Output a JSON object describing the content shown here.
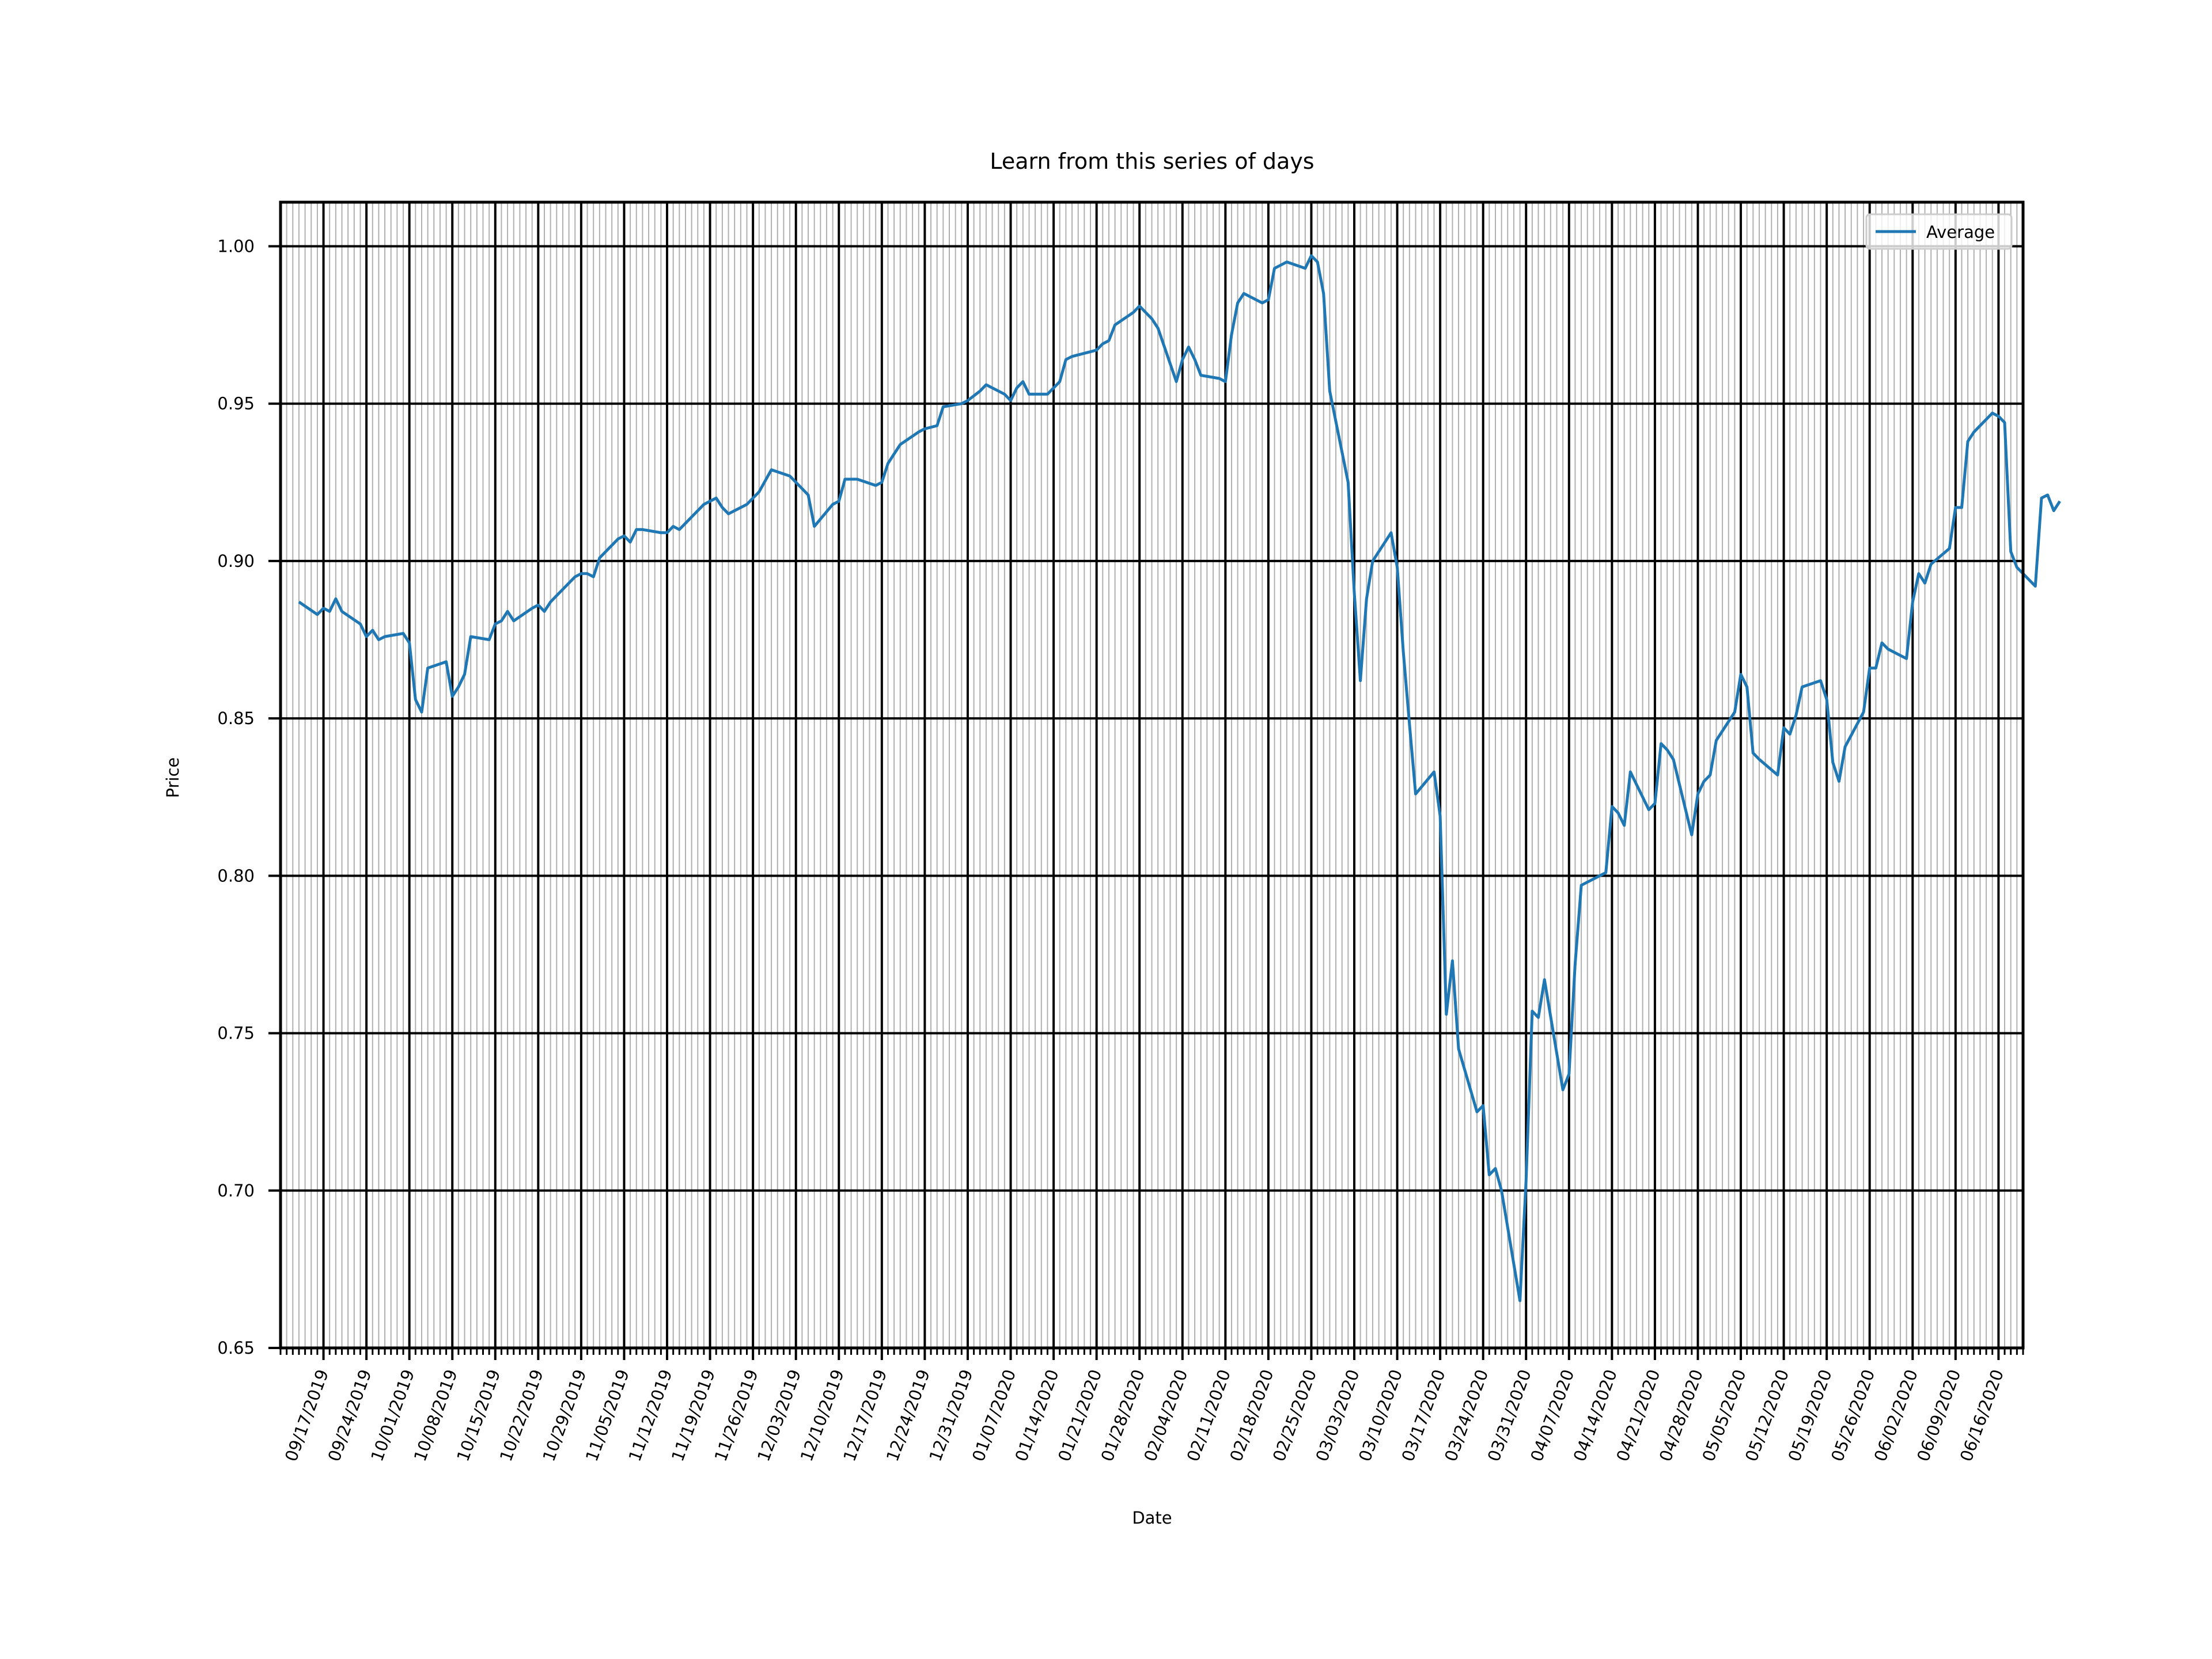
{
  "chart_data": {
    "type": "line",
    "title": "Learn from this series of days",
    "xlabel": "Date",
    "ylabel": "Price",
    "ylim": [
      0.65,
      1.014
    ],
    "xlim": [
      "2019-09-10",
      "2020-06-20"
    ],
    "yticks": [
      0.65,
      0.7,
      0.75,
      0.8,
      0.85,
      0.9,
      0.95,
      1.0
    ],
    "ytick_labels": [
      "0.65",
      "0.70",
      "0.75",
      "0.80",
      "0.85",
      "0.90",
      "0.95",
      "1.00"
    ],
    "xticks": [
      "2019-09-17",
      "2019-09-24",
      "2019-10-01",
      "2019-10-08",
      "2019-10-15",
      "2019-10-22",
      "2019-10-29",
      "2019-11-05",
      "2019-11-12",
      "2019-11-19",
      "2019-11-26",
      "2019-12-03",
      "2019-12-10",
      "2019-12-17",
      "2019-12-24",
      "2019-12-31",
      "2020-01-07",
      "2020-01-14",
      "2020-01-21",
      "2020-01-28",
      "2020-02-04",
      "2020-02-11",
      "2020-02-18",
      "2020-02-25",
      "2020-03-03",
      "2020-03-10",
      "2020-03-17",
      "2020-03-24",
      "2020-03-31",
      "2020-04-07",
      "2020-04-14",
      "2020-04-21",
      "2020-04-28",
      "2020-05-05",
      "2020-05-12",
      "2020-05-19",
      "2020-05-26",
      "2020-06-02",
      "2020-06-09",
      "2020-06-16"
    ],
    "xtick_labels": [
      "09/17/2019",
      "09/24/2019",
      "10/01/2019",
      "10/08/2019",
      "10/15/2019",
      "10/22/2019",
      "10/29/2019",
      "11/05/2019",
      "11/12/2019",
      "11/19/2019",
      "11/26/2019",
      "12/03/2019",
      "12/10/2019",
      "12/17/2019",
      "12/24/2019",
      "12/31/2019",
      "01/07/2020",
      "01/14/2020",
      "01/21/2020",
      "01/28/2020",
      "02/04/2020",
      "02/11/2020",
      "02/18/2020",
      "02/25/2020",
      "03/03/2020",
      "03/10/2020",
      "03/17/2020",
      "03/24/2020",
      "03/31/2020",
      "04/07/2020",
      "04/14/2020",
      "04/21/2020",
      "04/28/2020",
      "05/05/2020",
      "05/12/2020",
      "05/19/2020",
      "05/26/2020",
      "06/02/2020",
      "06/09/2020",
      "06/16/2020"
    ],
    "grid": {
      "major": true,
      "minor": true
    },
    "legend": {
      "position": "upper right",
      "entries": [
        "Average"
      ]
    },
    "series": [
      {
        "name": "Average",
        "color": "#1f77b4",
        "points": [
          [
            "2019-09-13",
            0.887
          ],
          [
            "2019-09-16",
            0.883
          ],
          [
            "2019-09-17",
            0.885
          ],
          [
            "2019-09-18",
            0.884
          ],
          [
            "2019-09-19",
            0.888
          ],
          [
            "2019-09-20",
            0.884
          ],
          [
            "2019-09-23",
            0.88
          ],
          [
            "2019-09-24",
            0.876
          ],
          [
            "2019-09-25",
            0.878
          ],
          [
            "2019-09-26",
            0.875
          ],
          [
            "2019-09-27",
            0.876
          ],
          [
            "2019-09-30",
            0.877
          ],
          [
            "2019-10-01",
            0.874
          ],
          [
            "2019-10-02",
            0.856
          ],
          [
            "2019-10-03",
            0.852
          ],
          [
            "2019-10-04",
            0.866
          ],
          [
            "2019-10-07",
            0.868
          ],
          [
            "2019-10-08",
            0.857
          ],
          [
            "2019-10-09",
            0.86
          ],
          [
            "2019-10-10",
            0.864
          ],
          [
            "2019-10-11",
            0.876
          ],
          [
            "2019-10-14",
            0.875
          ],
          [
            "2019-10-15",
            0.88
          ],
          [
            "2019-10-16",
            0.881
          ],
          [
            "2019-10-17",
            0.884
          ],
          [
            "2019-10-18",
            0.881
          ],
          [
            "2019-10-21",
            0.885
          ],
          [
            "2019-10-22",
            0.886
          ],
          [
            "2019-10-23",
            0.884
          ],
          [
            "2019-10-24",
            0.887
          ],
          [
            "2019-10-25",
            0.889
          ],
          [
            "2019-10-28",
            0.895
          ],
          [
            "2019-10-29",
            0.896
          ],
          [
            "2019-10-30",
            0.896
          ],
          [
            "2019-10-31",
            0.895
          ],
          [
            "2019-11-01",
            0.901
          ],
          [
            "2019-11-04",
            0.907
          ],
          [
            "2019-11-05",
            0.908
          ],
          [
            "2019-11-06",
            0.906
          ],
          [
            "2019-11-07",
            0.91
          ],
          [
            "2019-11-08",
            0.91
          ],
          [
            "2019-11-11",
            0.909
          ],
          [
            "2019-11-12",
            0.909
          ],
          [
            "2019-11-13",
            0.911
          ],
          [
            "2019-11-14",
            0.91
          ],
          [
            "2019-11-15",
            0.912
          ],
          [
            "2019-11-18",
            0.918
          ],
          [
            "2019-11-19",
            0.919
          ],
          [
            "2019-11-20",
            0.92
          ],
          [
            "2019-11-21",
            0.917
          ],
          [
            "2019-11-22",
            0.915
          ],
          [
            "2019-11-25",
            0.918
          ],
          [
            "2019-11-26",
            0.92
          ],
          [
            "2019-11-27",
            0.922
          ],
          [
            "2019-11-29",
            0.929
          ],
          [
            "2019-12-02",
            0.927
          ],
          [
            "2019-12-03",
            0.925
          ],
          [
            "2019-12-04",
            0.923
          ],
          [
            "2019-12-05",
            0.921
          ],
          [
            "2019-12-06",
            0.911
          ],
          [
            "2019-12-09",
            0.918
          ],
          [
            "2019-12-10",
            0.919
          ],
          [
            "2019-12-11",
            0.926
          ],
          [
            "2019-12-12",
            0.926
          ],
          [
            "2019-12-13",
            0.926
          ],
          [
            "2019-12-16",
            0.924
          ],
          [
            "2019-12-17",
            0.925
          ],
          [
            "2019-12-18",
            0.931
          ],
          [
            "2019-12-19",
            0.934
          ],
          [
            "2019-12-20",
            0.937
          ],
          [
            "2019-12-23",
            0.941
          ],
          [
            "2019-12-24",
            0.942
          ],
          [
            "2019-12-26",
            0.943
          ],
          [
            "2019-12-27",
            0.949
          ],
          [
            "2019-12-30",
            0.95
          ],
          [
            "2019-12-31",
            0.951
          ],
          [
            "2020-01-02",
            0.954
          ],
          [
            "2020-01-03",
            0.956
          ],
          [
            "2020-01-06",
            0.953
          ],
          [
            "2020-01-07",
            0.951
          ],
          [
            "2020-01-08",
            0.955
          ],
          [
            "2020-01-09",
            0.957
          ],
          [
            "2020-01-10",
            0.953
          ],
          [
            "2020-01-13",
            0.953
          ],
          [
            "2020-01-14",
            0.955
          ],
          [
            "2020-01-15",
            0.957
          ],
          [
            "2020-01-16",
            0.964
          ],
          [
            "2020-01-17",
            0.965
          ],
          [
            "2020-01-21",
            0.967
          ],
          [
            "2020-01-22",
            0.969
          ],
          [
            "2020-01-23",
            0.97
          ],
          [
            "2020-01-24",
            0.975
          ],
          [
            "2020-01-27",
            0.979
          ],
          [
            "2020-01-28",
            0.981
          ],
          [
            "2020-01-29",
            0.979
          ],
          [
            "2020-01-30",
            0.977
          ],
          [
            "2020-01-31",
            0.974
          ],
          [
            "2020-02-03",
            0.957
          ],
          [
            "2020-02-04",
            0.964
          ],
          [
            "2020-02-05",
            0.968
          ],
          [
            "2020-02-06",
            0.964
          ],
          [
            "2020-02-07",
            0.959
          ],
          [
            "2020-02-10",
            0.958
          ],
          [
            "2020-02-11",
            0.957
          ],
          [
            "2020-02-12",
            0.972
          ],
          [
            "2020-02-13",
            0.982
          ],
          [
            "2020-02-14",
            0.985
          ],
          [
            "2020-02-17",
            0.982
          ],
          [
            "2020-02-18",
            0.983
          ],
          [
            "2020-02-19",
            0.993
          ],
          [
            "2020-02-20",
            0.994
          ],
          [
            "2020-02-21",
            0.995
          ],
          [
            "2020-02-24",
            0.993
          ],
          [
            "2020-02-25",
            0.997
          ],
          [
            "2020-02-26",
            0.995
          ],
          [
            "2020-02-27",
            0.985
          ],
          [
            "2020-02-28",
            0.954
          ],
          [
            "2020-03-02",
            0.925
          ],
          [
            "2020-03-03",
            0.89
          ],
          [
            "2020-03-04",
            0.862
          ],
          [
            "2020-03-05",
            0.888
          ],
          [
            "2020-03-06",
            0.9
          ],
          [
            "2020-03-09",
            0.909
          ],
          [
            "2020-03-10",
            0.898
          ],
          [
            "2020-03-11",
            0.871
          ],
          [
            "2020-03-12",
            0.848
          ],
          [
            "2020-03-13",
            0.826
          ],
          [
            "2020-03-16",
            0.833
          ],
          [
            "2020-03-17",
            0.819
          ],
          [
            "2020-03-18",
            0.756
          ],
          [
            "2020-03-19",
            0.773
          ],
          [
            "2020-03-20",
            0.745
          ],
          [
            "2020-03-23",
            0.725
          ],
          [
            "2020-03-24",
            0.727
          ],
          [
            "2020-03-25",
            0.705
          ],
          [
            "2020-03-26",
            0.707
          ],
          [
            "2020-03-27",
            0.7
          ],
          [
            "2020-03-30",
            0.665
          ],
          [
            "2020-03-31",
            0.703
          ],
          [
            "2020-04-01",
            0.757
          ],
          [
            "2020-04-02",
            0.755
          ],
          [
            "2020-04-03",
            0.767
          ],
          [
            "2020-04-06",
            0.732
          ],
          [
            "2020-04-07",
            0.737
          ],
          [
            "2020-04-08",
            0.772
          ],
          [
            "2020-04-09",
            0.797
          ],
          [
            "2020-04-13",
            0.801
          ],
          [
            "2020-04-14",
            0.822
          ],
          [
            "2020-04-15",
            0.82
          ],
          [
            "2020-04-16",
            0.816
          ],
          [
            "2020-04-17",
            0.833
          ],
          [
            "2020-04-20",
            0.821
          ],
          [
            "2020-04-21",
            0.823
          ],
          [
            "2020-04-22",
            0.842
          ],
          [
            "2020-04-23",
            0.84
          ],
          [
            "2020-04-24",
            0.837
          ],
          [
            "2020-04-27",
            0.813
          ],
          [
            "2020-04-28",
            0.826
          ],
          [
            "2020-04-29",
            0.83
          ],
          [
            "2020-04-30",
            0.832
          ],
          [
            "2020-05-01",
            0.843
          ],
          [
            "2020-05-04",
            0.852
          ],
          [
            "2020-05-05",
            0.864
          ],
          [
            "2020-05-06",
            0.86
          ],
          [
            "2020-05-07",
            0.839
          ],
          [
            "2020-05-08",
            0.837
          ],
          [
            "2020-05-11",
            0.832
          ],
          [
            "2020-05-12",
            0.847
          ],
          [
            "2020-05-13",
            0.845
          ],
          [
            "2020-05-14",
            0.851
          ],
          [
            "2020-05-15",
            0.86
          ],
          [
            "2020-05-18",
            0.862
          ],
          [
            "2020-05-19",
            0.856
          ],
          [
            "2020-05-20",
            0.836
          ],
          [
            "2020-05-21",
            0.83
          ],
          [
            "2020-05-22",
            0.841
          ],
          [
            "2020-05-25",
            0.852
          ],
          [
            "2020-05-26",
            0.866
          ],
          [
            "2020-05-27",
            0.866
          ],
          [
            "2020-05-28",
            0.874
          ],
          [
            "2020-05-29",
            0.872
          ],
          [
            "2020-06-01",
            0.869
          ],
          [
            "2020-06-02",
            0.887
          ],
          [
            "2020-06-03",
            0.896
          ],
          [
            "2020-06-04",
            0.893
          ],
          [
            "2020-06-05",
            0.899
          ],
          [
            "2020-06-08",
            0.904
          ],
          [
            "2020-06-09",
            0.917
          ],
          [
            "2020-06-10",
            0.917
          ],
          [
            "2020-06-11",
            0.938
          ],
          [
            "2020-06-12",
            0.941
          ],
          [
            "2020-06-15",
            0.947
          ],
          [
            "2020-06-16",
            0.946
          ],
          [
            "2020-06-17",
            0.944
          ],
          [
            "2020-06-18",
            0.903
          ],
          [
            "2020-06-19",
            0.898
          ],
          [
            "2020-06-22",
            0.892
          ],
          [
            "2020-06-23",
            0.92
          ],
          [
            "2020-06-24",
            0.921
          ],
          [
            "2020-06-25",
            0.916
          ],
          [
            "2020-06-26",
            0.919
          ]
        ]
      }
    ]
  }
}
